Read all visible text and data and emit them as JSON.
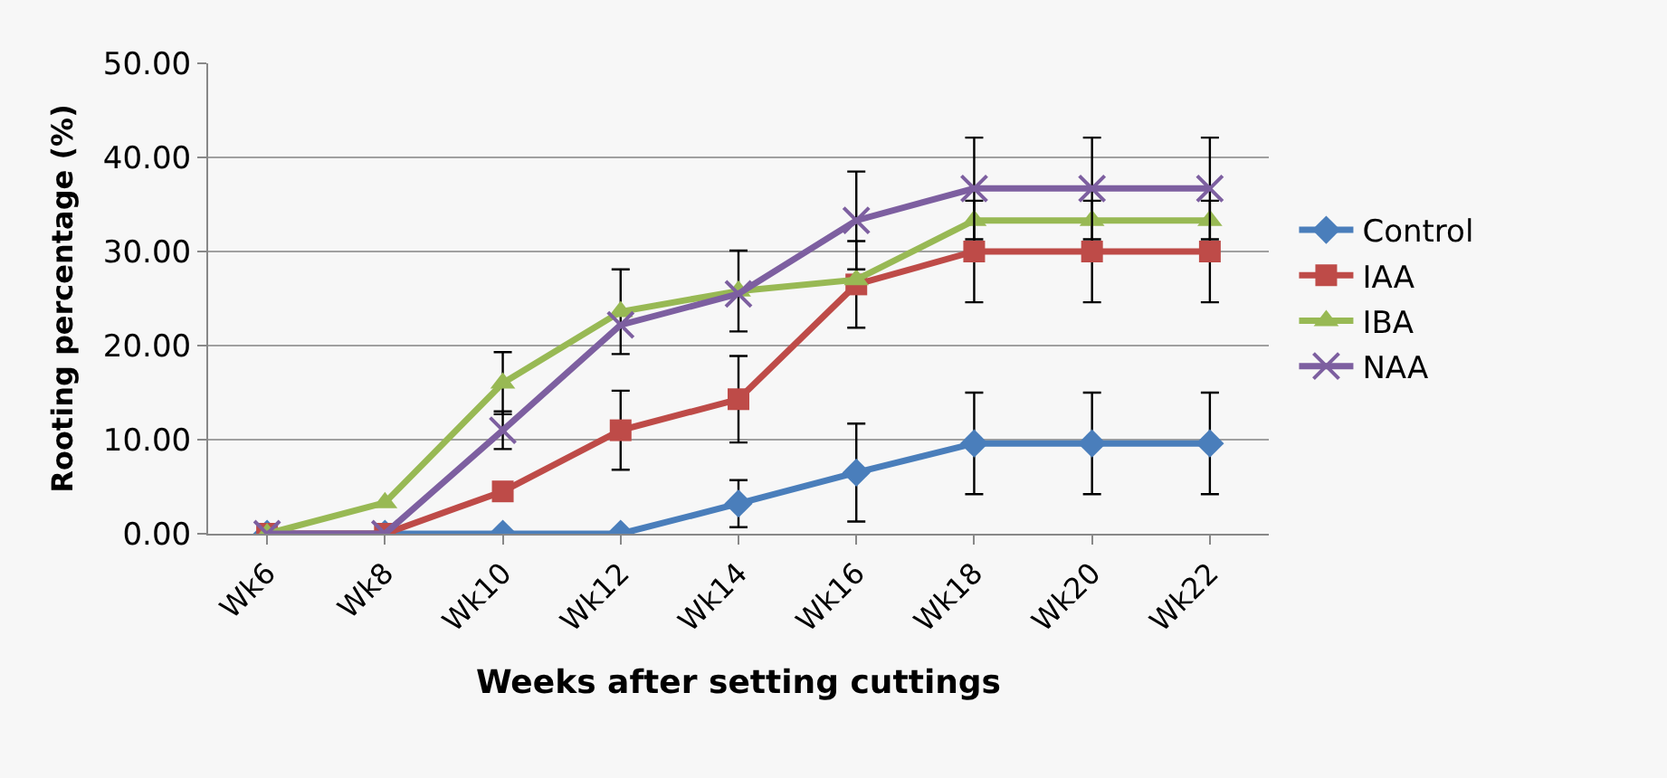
{
  "chart_data": {
    "type": "line",
    "xlabel": "Weeks after setting cuttings",
    "ylabel": "Rooting percentage (%)",
    "categories": [
      "Wk6",
      "Wk8",
      "Wk10",
      "Wk12",
      "Wk14",
      "Wk16",
      "Wk18",
      "Wk20",
      "Wk22"
    ],
    "series": [
      {
        "name": "Control",
        "color": "#4a7ebb",
        "marker": "diamond",
        "values": [
          0,
          0,
          0,
          0,
          3.2,
          6.5,
          9.6,
          9.6,
          9.6
        ],
        "errors": [
          null,
          null,
          null,
          null,
          2.5,
          5.2,
          5.4,
          5.4,
          5.4
        ]
      },
      {
        "name": "IAA",
        "color": "#be4b48",
        "marker": "square",
        "values": [
          0,
          0,
          4.5,
          11,
          14.3,
          26.5,
          30,
          30,
          30
        ],
        "errors": [
          null,
          null,
          null,
          4.2,
          4.6,
          4.6,
          5.4,
          5.4,
          5.4
        ]
      },
      {
        "name": "IBA",
        "color": "#98b954",
        "marker": "triangle",
        "values": [
          0,
          3.3,
          16,
          23.6,
          25.8,
          27,
          33.3,
          33.3,
          33.3
        ],
        "errors": [
          null,
          null,
          3.3,
          4.5,
          4.3,
          null,
          null,
          null,
          null
        ]
      },
      {
        "name": "NAA",
        "color": "#7d5fa0",
        "marker": "cross",
        "values": [
          0,
          0,
          11,
          22.2,
          25.5,
          33.3,
          36.7,
          36.7,
          36.7
        ],
        "errors": [
          null,
          null,
          2,
          null,
          null,
          5.2,
          5.4,
          5.4,
          5.4
        ]
      }
    ],
    "ylim": [
      0,
      50
    ],
    "yticks": [
      {
        "value": 0,
        "label": "0.00"
      },
      {
        "value": 10,
        "label": "10.00"
      },
      {
        "value": 20,
        "label": "20.00"
      },
      {
        "value": 30,
        "label": "30.00"
      },
      {
        "value": 40,
        "label": "40.00"
      },
      {
        "value": 50,
        "label": "50.00"
      }
    ],
    "grid": "y",
    "legend": "right"
  }
}
